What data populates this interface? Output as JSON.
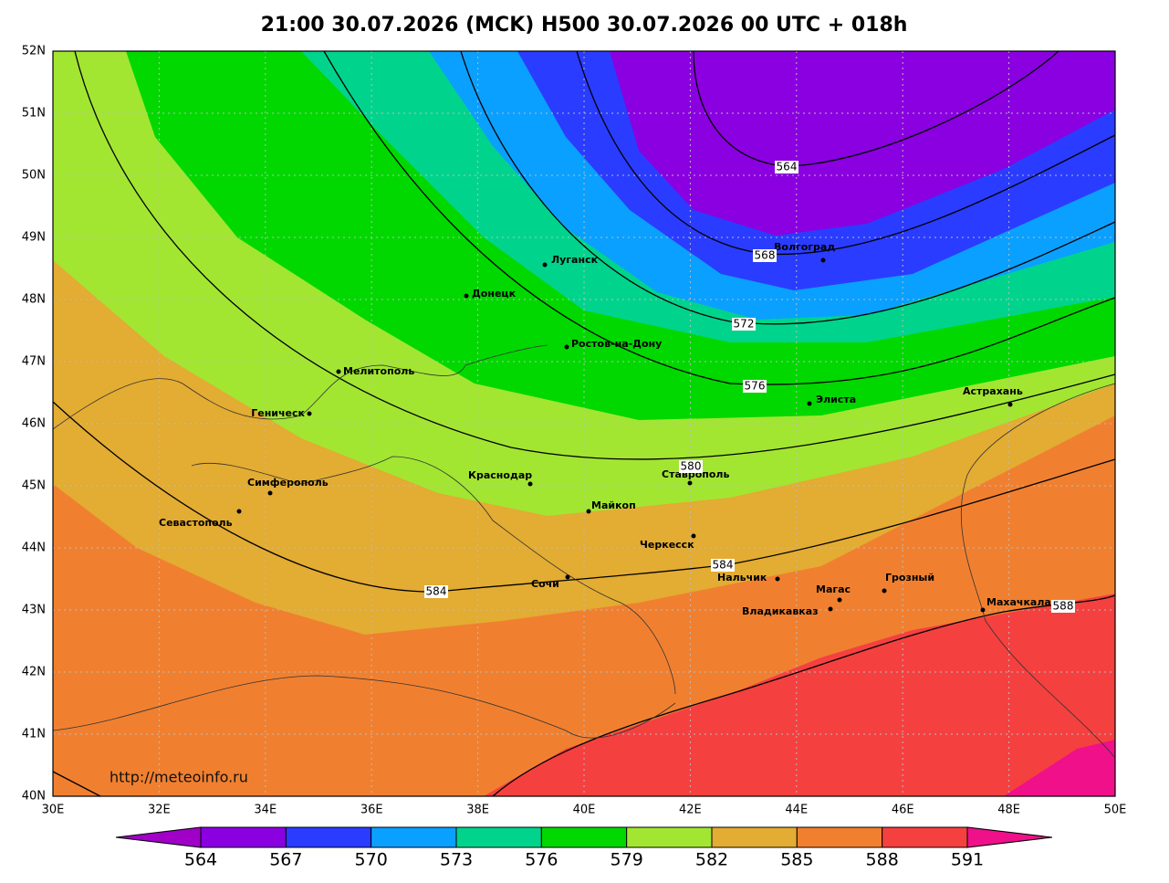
{
  "title": "21:00 30.07.2026 (MCK) H500  30.07.2026 00 UTC + 018h",
  "lat_labels": [
    "52N",
    "51N",
    "50N",
    "49N",
    "48N",
    "47N",
    "46N",
    "45N",
    "44N",
    "43N",
    "42N",
    "41N",
    "40N"
  ],
  "lon_labels": [
    "30E",
    "32E",
    "34E",
    "36E",
    "38E",
    "40E",
    "42E",
    "44E",
    "46E",
    "48E",
    "50E"
  ],
  "cities": [
    "Луганск",
    "Донецк",
    "Ростов-на-Дону",
    "Волгоград",
    "Мелитополь",
    "Геническ",
    "Элиста",
    "Астрахань",
    "Симферополь",
    "Севастополь",
    "Краснодар",
    "Майкоп",
    "Ставрополь",
    "Черкесск",
    "Сочи",
    "Нальчик",
    "Магас",
    "Грозный",
    "Владикавказ",
    "Махачкала"
  ],
  "contour_labels": [
    564,
    568,
    572,
    576,
    580,
    584,
    584,
    588
  ],
  "url": "http://meteoinfo.ru",
  "colorbar": {
    "labels": [
      564,
      567,
      570,
      573,
      576,
      579,
      582,
      585,
      588,
      591
    ],
    "colors": [
      "#a000c8",
      "#8a00e0",
      "#2a3cff",
      "#0aa0ff",
      "#00d48c",
      "#00d800",
      "#a2e632",
      "#e3ac32",
      "#f08030",
      "#f54040",
      "#f0108a"
    ]
  }
}
